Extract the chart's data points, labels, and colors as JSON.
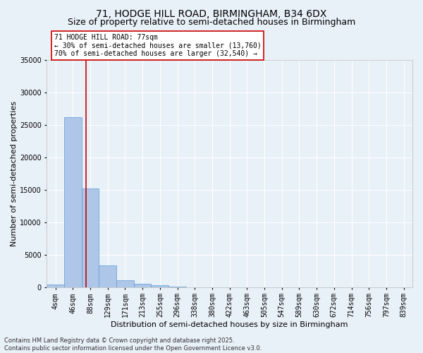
{
  "title_line1": "71, HODGE HILL ROAD, BIRMINGHAM, B34 6DX",
  "title_line2": "Size of property relative to semi-detached houses in Birmingham",
  "xlabel": "Distribution of semi-detached houses by size in Birmingham",
  "ylabel": "Number of semi-detached properties",
  "categories": [
    "4sqm",
    "46sqm",
    "88sqm",
    "129sqm",
    "171sqm",
    "213sqm",
    "255sqm",
    "296sqm",
    "338sqm",
    "380sqm",
    "422sqm",
    "463sqm",
    "505sqm",
    "547sqm",
    "589sqm",
    "630sqm",
    "672sqm",
    "714sqm",
    "756sqm",
    "797sqm",
    "839sqm"
  ],
  "bar_values": [
    400,
    26200,
    15200,
    3300,
    1050,
    500,
    250,
    100,
    0,
    0,
    0,
    0,
    0,
    0,
    0,
    0,
    0,
    0,
    0,
    0,
    0
  ],
  "bar_color": "#aec6e8",
  "bar_edge_color": "#5b9bd5",
  "ylim": [
    0,
    35000
  ],
  "yticks": [
    0,
    5000,
    10000,
    15000,
    20000,
    25000,
    30000,
    35000
  ],
  "property_line_color": "#cc0000",
  "annotation_text": "71 HODGE HILL ROAD: 77sqm\n← 30% of semi-detached houses are smaller (13,760)\n70% of semi-detached houses are larger (32,540) →",
  "annotation_box_color": "#ffffff",
  "annotation_box_edge": "#cc0000",
  "footer_line1": "Contains HM Land Registry data © Crown copyright and database right 2025.",
  "footer_line2": "Contains public sector information licensed under the Open Government Licence v3.0.",
  "bg_color": "#e8f0f8",
  "plot_bg_color": "#e8f0f8",
  "grid_color": "#ffffff",
  "title_fontsize": 10,
  "subtitle_fontsize": 9,
  "tick_fontsize": 7,
  "ylabel_fontsize": 8,
  "xlabel_fontsize": 8,
  "annotation_fontsize": 7,
  "footer_fontsize": 6
}
